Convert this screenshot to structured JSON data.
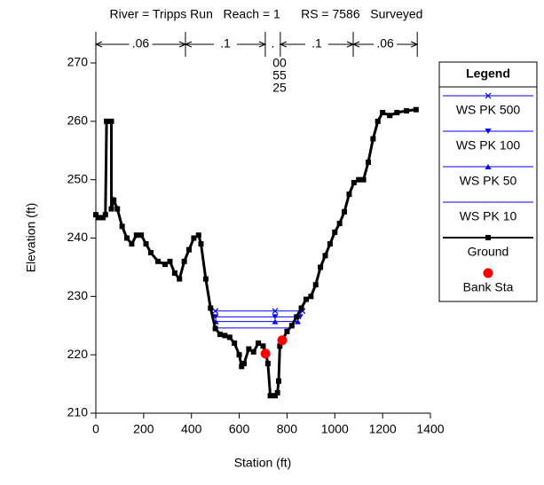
{
  "chart_data": {
    "type": "line",
    "title": "River = Tripps Run   Reach = 1      RS = 7586   Surveyed",
    "xlabel": "Station (ft)",
    "ylabel": "Elevation (ft)",
    "xlim": [
      0,
      1400
    ],
    "ylim": [
      210,
      275
    ],
    "xticks": [
      0,
      200,
      400,
      600,
      800,
      1000,
      1200,
      1400
    ],
    "yticks": [
      210,
      220,
      230,
      240,
      250,
      260,
      270
    ],
    "grid": false,
    "legend": "outside-right",
    "legend_title": "Legend",
    "n_values": {
      "stations": [
        0,
        375,
        709,
        772,
        1077,
        1345
      ],
      "labels": [
        ".06",
        ".1",
        ".",
        ".1",
        ".06"
      ]
    },
    "annotations": [
      "00",
      "55",
      "25"
    ],
    "series": [
      {
        "name": "WS PK 500",
        "color": "#0000ff",
        "marker": "x",
        "x": [
          500,
          750,
          865
        ],
        "values": [
          227.5,
          227.5,
          227.5
        ]
      },
      {
        "name": "WS PK 100",
        "color": "#0000ff",
        "marker": "triangle-down",
        "x": [
          501,
          750,
          855
        ],
        "values": [
          226.5,
          226.5,
          226.5
        ]
      },
      {
        "name": "WS PK 50",
        "color": "#0000ff",
        "marker": "triangle-up",
        "x": [
          502,
          750,
          845
        ],
        "values": [
          225.7,
          225.7,
          225.7
        ]
      },
      {
        "name": "WS PK 10",
        "color": "#0000ff",
        "marker": "none",
        "x": [
          503,
          830
        ],
        "values": [
          224.6,
          224.6
        ]
      },
      {
        "name": "Ground",
        "color": "#000000",
        "marker": "square",
        "x": [
          0,
          10,
          30,
          40,
          45,
          65,
          65,
          75,
          90,
          110,
          130,
          150,
          170,
          190,
          210,
          230,
          260,
          290,
          310,
          330,
          350,
          370,
          390,
          410,
          430,
          440,
          460,
          480,
          500,
          520,
          540,
          560,
          580,
          600,
          610,
          620,
          640,
          660,
          680,
          700,
          710,
          720,
          730,
          750,
          760,
          765,
          770,
          780,
          800,
          820,
          840,
          860,
          880,
          900,
          920,
          940,
          960,
          980,
          1000,
          1020,
          1040,
          1060,
          1080,
          1100,
          1120,
          1140,
          1160,
          1180,
          1200,
          1230,
          1260,
          1300,
          1340
        ],
        "values": [
          244,
          243.5,
          243.5,
          244,
          260,
          260,
          245,
          246.5,
          245,
          242,
          240,
          239,
          240.5,
          240.5,
          239,
          237.5,
          236,
          235.5,
          236,
          234,
          233,
          236,
          238,
          240,
          240.5,
          239,
          233,
          228,
          224.5,
          223.5,
          223.3,
          223,
          222,
          220,
          218,
          218.5,
          221,
          220.5,
          222,
          221.5,
          220.5,
          218.5,
          213,
          213,
          213.5,
          215.5,
          221.5,
          222.5,
          224,
          225,
          226.5,
          228,
          229.5,
          230,
          232,
          235,
          237,
          239,
          241,
          242.5,
          244.5,
          247.5,
          249.5,
          250,
          250,
          253,
          257,
          260,
          261.5,
          261,
          261.5,
          261.8,
          262
        ]
      },
      {
        "name": "Bank Sta",
        "color": "#ff0000",
        "marker": "circle",
        "line": false,
        "x": [
          710,
          780
        ],
        "values": [
          220.2,
          222.5
        ]
      }
    ]
  }
}
